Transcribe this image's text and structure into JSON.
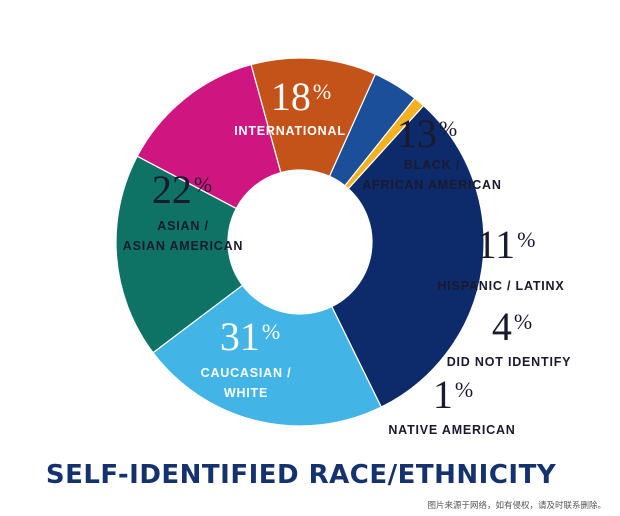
{
  "chart_data": {
    "type": "pie",
    "title": "SELF-IDENTIFIED RACE/ETHNICITY",
    "slices": [
      {
        "label_lines": [
          "INTERNATIONAL"
        ],
        "value": 18,
        "value_label": "18",
        "color": "#0e7364",
        "label_color": "#ffffff",
        "pct_color": "#ffffff"
      },
      {
        "label_lines": [
          "BLACK /",
          "AFRICAN AMERICAN"
        ],
        "value": 13,
        "value_label": "13",
        "color": "#cf1680",
        "label_color": "#1a1a2e",
        "pct_color": "#1a1a2e"
      },
      {
        "label_lines": [
          "HISPANIC / LATINX"
        ],
        "value": 11,
        "value_label": "11",
        "color": "#c4531a",
        "label_color": "#1a1a2e",
        "pct_color": "#1a1a2e"
      },
      {
        "label_lines": [
          "DID NOT IDENTIFY"
        ],
        "value": 4,
        "value_label": "4",
        "color": "#1b4f99",
        "label_color": "#1a1a2e",
        "pct_color": "#1a1a2e"
      },
      {
        "label_lines": [
          "NATIVE AMERICAN"
        ],
        "value": 1,
        "value_label": "1",
        "color": "#f2b123",
        "label_color": "#1a1a2e",
        "pct_color": "#1a1a2e"
      },
      {
        "label_lines": [
          "CAUCASIAN /",
          "WHITE"
        ],
        "value": 31,
        "value_label": "31",
        "color": "#0d2a6b",
        "label_color": "#ffffff",
        "pct_color": "#ffffff"
      },
      {
        "label_lines": [
          "ASIAN /",
          "ASIAN AMERICAN"
        ],
        "value": 22,
        "value_label": "22",
        "color": "#42b4e6",
        "label_color": "#1a1a2e",
        "pct_color": "#1a1a2e"
      }
    ],
    "percent_sign": "%",
    "title_color": "#16326e"
  },
  "watermark": "图片来源于网络，如有侵权，请及时联系删除。"
}
